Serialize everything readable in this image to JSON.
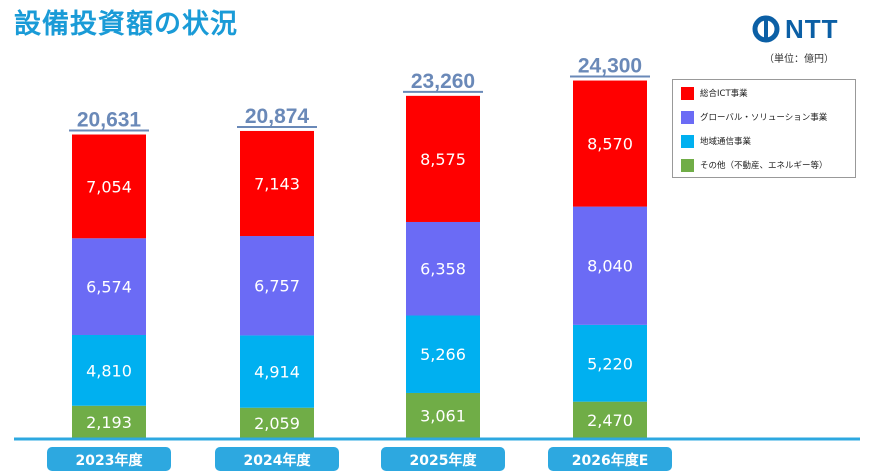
{
  "page": {
    "title": "設備投資額の状況",
    "logo_text": "NTT",
    "unit": "（単位：億円）"
  },
  "colors": {
    "ict": "#ff0000",
    "global": "#6b6bf5",
    "regional": "#00b0f0",
    "other": "#70ad47",
    "total_text": "#6a89b8",
    "axis": "#2da8e0",
    "category_box": "#2da8e0"
  },
  "chart_data": {
    "type": "bar",
    "stacked": true,
    "categories": [
      "2023年度",
      "2024年度",
      "2025年度",
      "2026年度E"
    ],
    "series": [
      {
        "name": "その他（不動産、エネルギー等）",
        "values": [
          2193,
          2059,
          3061,
          2470
        ]
      },
      {
        "name": "地域通信事業",
        "values": [
          4810,
          4914,
          5266,
          5220
        ]
      },
      {
        "name": "グローバル・ソリューション事業",
        "values": [
          6574,
          6757,
          6358,
          8040
        ]
      },
      {
        "name": "総合ICT事業",
        "values": [
          7054,
          7143,
          8575,
          8570
        ]
      }
    ],
    "totals": [
      20631,
      20874,
      23260,
      24300
    ],
    "value_labels": [
      [
        "2,193",
        "4,810",
        "6,574",
        "7,054"
      ],
      [
        "2,059",
        "4,914",
        "6,757",
        "7,143"
      ],
      [
        "3,061",
        "5,266",
        "6,358",
        "8,575"
      ],
      [
        "2,470",
        "5,220",
        "8,040",
        "8,570"
      ]
    ],
    "total_labels": [
      "20,631",
      "20,874",
      "23,260",
      "24,300"
    ],
    "legend": [
      "総合ICT事業",
      "グローバル・ソリューション事業",
      "地域通信事業",
      "その他（不動産、エネルギー等）"
    ],
    "legend_position": "top-right",
    "grid": false,
    "ylim": [
      0,
      25000
    ]
  }
}
